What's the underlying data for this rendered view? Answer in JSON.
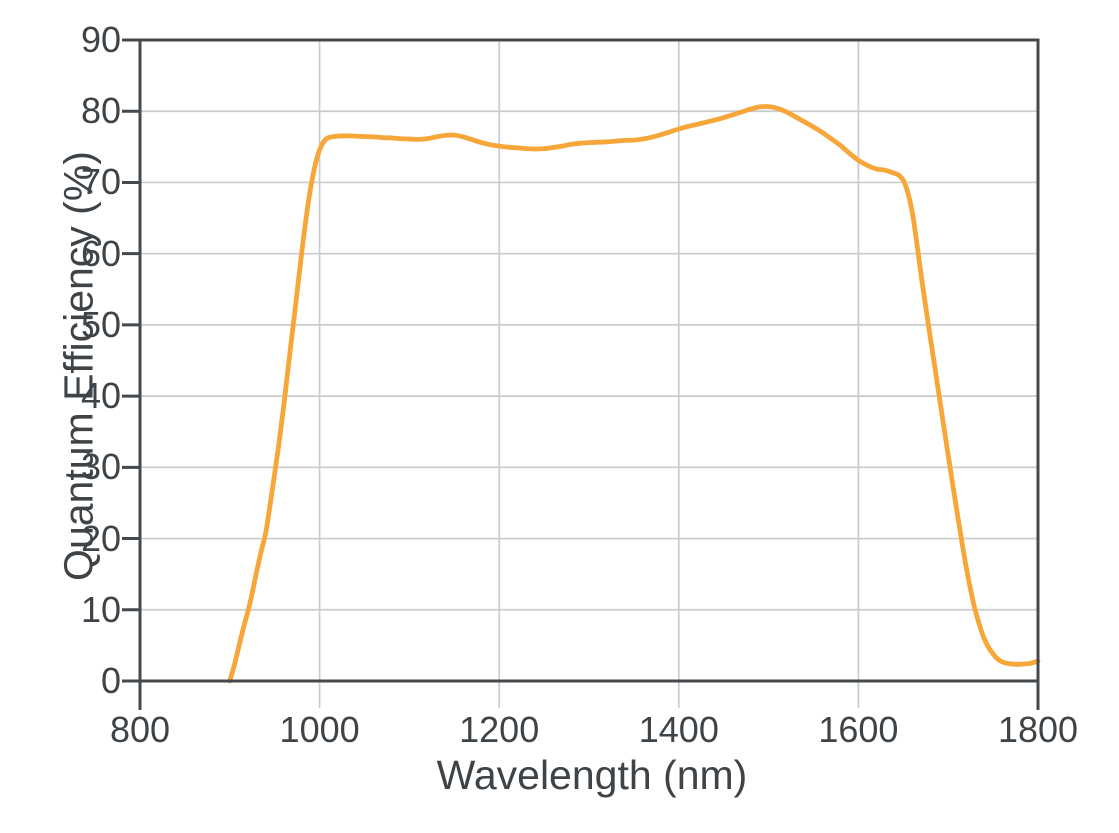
{
  "chart_data": {
    "type": "line",
    "title": "",
    "xlabel": "Wavelength (nm)",
    "ylabel": "Quantum Efficiency (%)",
    "xlim": [
      800,
      1800
    ],
    "ylim": [
      0,
      90
    ],
    "xticks": [
      800,
      1000,
      1200,
      1400,
      1600,
      1800
    ],
    "yticks": [
      0,
      10,
      20,
      30,
      40,
      50,
      60,
      70,
      80,
      90
    ],
    "grid": true,
    "legend": "none",
    "colors": {
      "curve": "#F7A639",
      "axis": "#44494E",
      "text": "#3E4347",
      "gridline": "#C9CCCE",
      "background": "#FFFFFF"
    },
    "series": [
      {
        "name": "Quantum Efficiency",
        "color": "#F7A639",
        "x": [
          900,
          905,
          910,
          915,
          920,
          925,
          930,
          935,
          940,
          945,
          950,
          955,
          960,
          965,
          970,
          975,
          980,
          985,
          990,
          995,
          1000,
          1005,
          1010,
          1020,
          1030,
          1040,
          1050,
          1060,
          1070,
          1080,
          1090,
          1100,
          1110,
          1120,
          1130,
          1140,
          1150,
          1160,
          1170,
          1180,
          1190,
          1200,
          1210,
          1220,
          1230,
          1240,
          1250,
          1260,
          1270,
          1280,
          1290,
          1300,
          1310,
          1320,
          1330,
          1340,
          1350,
          1360,
          1370,
          1380,
          1390,
          1400,
          1410,
          1420,
          1430,
          1440,
          1450,
          1460,
          1470,
          1480,
          1490,
          1500,
          1510,
          1520,
          1530,
          1540,
          1550,
          1560,
          1570,
          1580,
          1590,
          1600,
          1610,
          1620,
          1630,
          1640,
          1645,
          1650,
          1655,
          1660,
          1665,
          1670,
          1675,
          1680,
          1685,
          1690,
          1695,
          1700,
          1705,
          1710,
          1715,
          1720,
          1725,
          1730,
          1735,
          1740,
          1745,
          1750,
          1755,
          1760,
          1765,
          1770,
          1775,
          1780,
          1785,
          1790,
          1795,
          1800
        ],
        "y": [
          0,
          2.2,
          4.8,
          7.4,
          9.7,
          12.4,
          15.4,
          18.2,
          20.8,
          24.8,
          29.2,
          33.6,
          38.6,
          44,
          49.4,
          54.6,
          60,
          65,
          69.2,
          72.4,
          74.6,
          75.8,
          76.3,
          76.5,
          76.55,
          76.5,
          76.45,
          76.4,
          76.3,
          76.25,
          76.15,
          76.1,
          76.05,
          76.15,
          76.4,
          76.6,
          76.65,
          76.4,
          76,
          75.6,
          75.3,
          75.1,
          74.95,
          74.85,
          74.75,
          74.7,
          74.75,
          74.9,
          75.1,
          75.35,
          75.5,
          75.6,
          75.65,
          75.7,
          75.8,
          75.9,
          75.95,
          76.1,
          76.35,
          76.7,
          77.1,
          77.5,
          77.85,
          78.15,
          78.45,
          78.75,
          79.1,
          79.5,
          79.9,
          80.3,
          80.6,
          80.65,
          80.4,
          79.9,
          79.2,
          78.5,
          77.8,
          77,
          76.1,
          75.2,
          74.1,
          73.1,
          72.4,
          71.9,
          71.7,
          71.3,
          71,
          70.3,
          68.6,
          65.8,
          61.5,
          56.8,
          52.5,
          48.3,
          44.2,
          40,
          35.8,
          31.7,
          27.6,
          23.6,
          19.7,
          16,
          12.8,
          10,
          7.8,
          6,
          4.7,
          3.8,
          3.1,
          2.7,
          2.5,
          2.4,
          2.35,
          2.35,
          2.4,
          2.45,
          2.6,
          2.8
        ]
      }
    ]
  }
}
